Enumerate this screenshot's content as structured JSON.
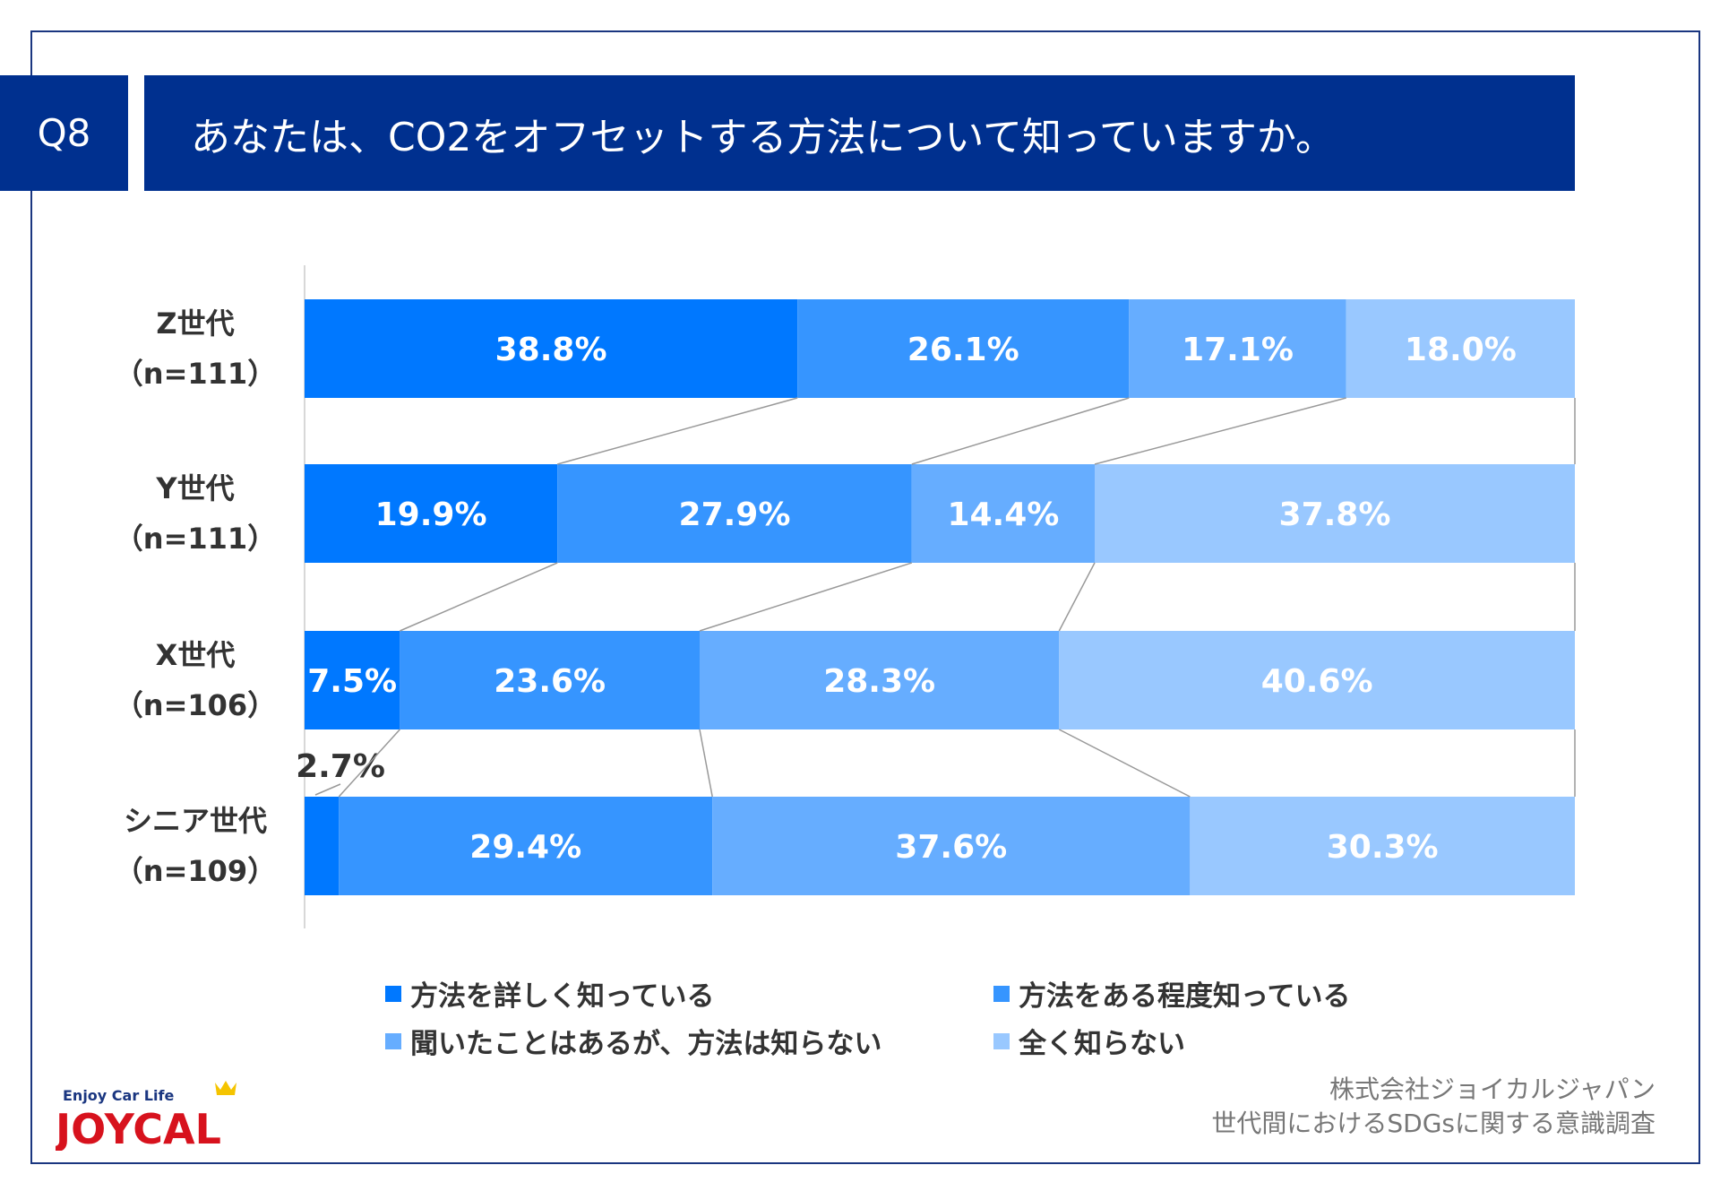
{
  "header": {
    "q": "Q8",
    "title": "あなたは、CO2をオフセットする方法について知っていますか。"
  },
  "chart_data": {
    "type": "bar",
    "orientation": "horizontal-stacked-100",
    "categories": [
      {
        "name": "Z世代",
        "n": "（n=111）"
      },
      {
        "name": "Y世代",
        "n": "（n=111）"
      },
      {
        "name": "X世代",
        "n": "（n=106）"
      },
      {
        "name": "シニア世代",
        "n": "（n=109）"
      }
    ],
    "series": [
      {
        "name": "方法を詳しく知っている",
        "color": "#0078ff",
        "values": [
          38.8,
          19.9,
          7.5,
          2.7
        ],
        "labels": [
          "38.8%",
          "19.9%",
          "7.5%",
          "2.7%"
        ]
      },
      {
        "name": "方法をある程度知っている",
        "color": "#3695ff",
        "values": [
          26.1,
          27.9,
          23.6,
          29.4
        ],
        "labels": [
          "26.1%",
          "27.9%",
          "23.6%",
          "29.4%"
        ]
      },
      {
        "name": "聞いたことはあるが、方法は知らない",
        "color": "#66adff",
        "values": [
          17.1,
          14.4,
          28.3,
          37.6
        ],
        "labels": [
          "17.1%",
          "14.4%",
          "28.3%",
          "37.6%"
        ]
      },
      {
        "name": "全く知らない",
        "color": "#99c8ff",
        "values": [
          18.0,
          37.8,
          40.6,
          30.3
        ],
        "labels": [
          "18.0%",
          "37.8%",
          "40.6%",
          "30.3%"
        ]
      }
    ],
    "legend": "bottom",
    "series_lines": true
  },
  "footer": {
    "company": "株式会社ジョイカルジャパン",
    "survey": "世代間におけるSDGsに関する意識調査",
    "logo_tagline": "Enjoy Car Life",
    "logo_text": "JOYCAL"
  }
}
